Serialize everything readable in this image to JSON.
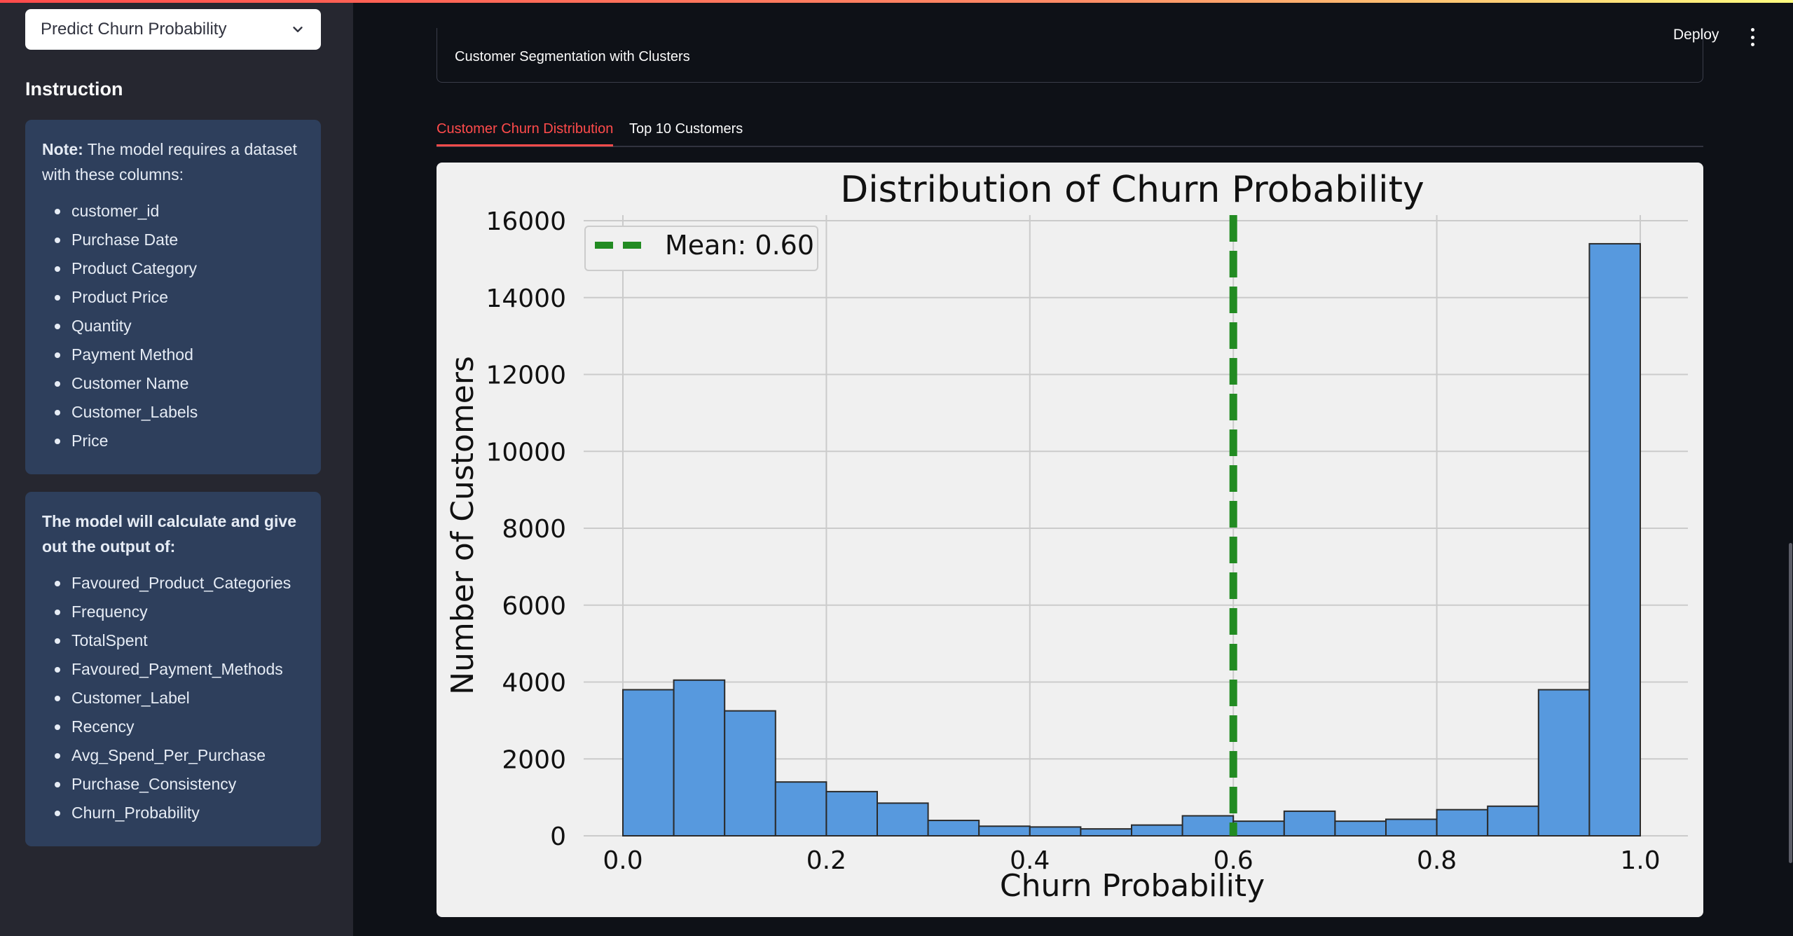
{
  "sidebar": {
    "page_select": "Predict Churn Probability",
    "heading": "Instruction",
    "note_bold": "Note:",
    "note_text": " The model requires a dataset with these columns:",
    "required_columns": [
      "customer_id",
      "Purchase Date",
      "Product Category",
      "Product Price",
      "Quantity",
      "Payment Method",
      "Customer Name",
      "Customer_Labels",
      "Price"
    ],
    "output_heading": "The model will calculate and give out the output of:",
    "output_columns": [
      "Favoured_Product_Categories",
      "Frequency",
      "TotalSpent",
      "Favoured_Payment_Methods",
      "Customer_Label",
      "Recency",
      "Avg_Spend_Per_Purchase",
      "Purchase_Consistency",
      "Churn_Probability"
    ]
  },
  "header": {
    "deploy_label": "Deploy"
  },
  "main": {
    "expander_label": "Customer Segmentation with Clusters",
    "tabs": [
      {
        "label": "Customer Churn Distribution",
        "active": true
      },
      {
        "label": "Top 10 Customers",
        "active": false
      }
    ]
  },
  "colors": {
    "accent": "#ff4b4b",
    "bar_fill": "#5799de",
    "mean_line": "#228b22",
    "info_box": "#2e3f5c"
  },
  "chart_data": {
    "type": "bar",
    "title": "Distribution of Churn Probability",
    "xlabel": "Churn Probability",
    "ylabel": "Number of Customers",
    "xlim": [
      0.0,
      1.0
    ],
    "ylim": [
      0,
      16000
    ],
    "xticks": [
      "0.0",
      "0.2",
      "0.4",
      "0.6",
      "0.8",
      "1.0"
    ],
    "yticks": [
      "0",
      "2000",
      "4000",
      "6000",
      "8000",
      "10000",
      "12000",
      "14000",
      "16000"
    ],
    "bin_edges": [
      0.0,
      0.05,
      0.1,
      0.15,
      0.2,
      0.25,
      0.3,
      0.35,
      0.4,
      0.45,
      0.5,
      0.55,
      0.6,
      0.65,
      0.7,
      0.75,
      0.8,
      0.85,
      0.9,
      0.95,
      1.0
    ],
    "values": [
      3800,
      4050,
      3250,
      1400,
      1150,
      850,
      400,
      250,
      230,
      180,
      280,
      520,
      380,
      640,
      380,
      430,
      680,
      770,
      3800,
      15400
    ],
    "mean_line": {
      "value": 0.6,
      "label": "Mean: 0.60"
    },
    "legend_position": "top-left",
    "grid": true
  }
}
